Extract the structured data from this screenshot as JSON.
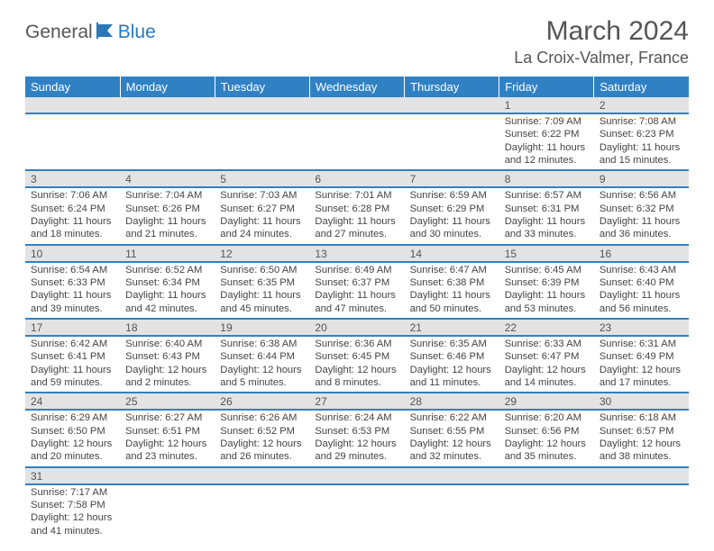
{
  "brand": {
    "part1": "General",
    "part2": "Blue"
  },
  "title": "March 2024",
  "location": "La Croix-Valmer, France",
  "colors": {
    "header_bg": "#3081c4",
    "header_fg": "#ffffff",
    "daynum_bg": "#e3e3e3",
    "row_divider": "#3081c4",
    "text": "#444444"
  },
  "day_labels": [
    "Sunday",
    "Monday",
    "Tuesday",
    "Wednesday",
    "Thursday",
    "Friday",
    "Saturday"
  ],
  "weeks": [
    [
      null,
      null,
      null,
      null,
      null,
      {
        "n": "1",
        "sr": "7:09 AM",
        "ss": "6:22 PM",
        "dl": "11 hours and 12 minutes."
      },
      {
        "n": "2",
        "sr": "7:08 AM",
        "ss": "6:23 PM",
        "dl": "11 hours and 15 minutes."
      }
    ],
    [
      {
        "n": "3",
        "sr": "7:06 AM",
        "ss": "6:24 PM",
        "dl": "11 hours and 18 minutes."
      },
      {
        "n": "4",
        "sr": "7:04 AM",
        "ss": "6:26 PM",
        "dl": "11 hours and 21 minutes."
      },
      {
        "n": "5",
        "sr": "7:03 AM",
        "ss": "6:27 PM",
        "dl": "11 hours and 24 minutes."
      },
      {
        "n": "6",
        "sr": "7:01 AM",
        "ss": "6:28 PM",
        "dl": "11 hours and 27 minutes."
      },
      {
        "n": "7",
        "sr": "6:59 AM",
        "ss": "6:29 PM",
        "dl": "11 hours and 30 minutes."
      },
      {
        "n": "8",
        "sr": "6:57 AM",
        "ss": "6:31 PM",
        "dl": "11 hours and 33 minutes."
      },
      {
        "n": "9",
        "sr": "6:56 AM",
        "ss": "6:32 PM",
        "dl": "11 hours and 36 minutes."
      }
    ],
    [
      {
        "n": "10",
        "sr": "6:54 AM",
        "ss": "6:33 PM",
        "dl": "11 hours and 39 minutes."
      },
      {
        "n": "11",
        "sr": "6:52 AM",
        "ss": "6:34 PM",
        "dl": "11 hours and 42 minutes."
      },
      {
        "n": "12",
        "sr": "6:50 AM",
        "ss": "6:35 PM",
        "dl": "11 hours and 45 minutes."
      },
      {
        "n": "13",
        "sr": "6:49 AM",
        "ss": "6:37 PM",
        "dl": "11 hours and 47 minutes."
      },
      {
        "n": "14",
        "sr": "6:47 AM",
        "ss": "6:38 PM",
        "dl": "11 hours and 50 minutes."
      },
      {
        "n": "15",
        "sr": "6:45 AM",
        "ss": "6:39 PM",
        "dl": "11 hours and 53 minutes."
      },
      {
        "n": "16",
        "sr": "6:43 AM",
        "ss": "6:40 PM",
        "dl": "11 hours and 56 minutes."
      }
    ],
    [
      {
        "n": "17",
        "sr": "6:42 AM",
        "ss": "6:41 PM",
        "dl": "11 hours and 59 minutes."
      },
      {
        "n": "18",
        "sr": "6:40 AM",
        "ss": "6:43 PM",
        "dl": "12 hours and 2 minutes."
      },
      {
        "n": "19",
        "sr": "6:38 AM",
        "ss": "6:44 PM",
        "dl": "12 hours and 5 minutes."
      },
      {
        "n": "20",
        "sr": "6:36 AM",
        "ss": "6:45 PM",
        "dl": "12 hours and 8 minutes."
      },
      {
        "n": "21",
        "sr": "6:35 AM",
        "ss": "6:46 PM",
        "dl": "12 hours and 11 minutes."
      },
      {
        "n": "22",
        "sr": "6:33 AM",
        "ss": "6:47 PM",
        "dl": "12 hours and 14 minutes."
      },
      {
        "n": "23",
        "sr": "6:31 AM",
        "ss": "6:49 PM",
        "dl": "12 hours and 17 minutes."
      }
    ],
    [
      {
        "n": "24",
        "sr": "6:29 AM",
        "ss": "6:50 PM",
        "dl": "12 hours and 20 minutes."
      },
      {
        "n": "25",
        "sr": "6:27 AM",
        "ss": "6:51 PM",
        "dl": "12 hours and 23 minutes."
      },
      {
        "n": "26",
        "sr": "6:26 AM",
        "ss": "6:52 PM",
        "dl": "12 hours and 26 minutes."
      },
      {
        "n": "27",
        "sr": "6:24 AM",
        "ss": "6:53 PM",
        "dl": "12 hours and 29 minutes."
      },
      {
        "n": "28",
        "sr": "6:22 AM",
        "ss": "6:55 PM",
        "dl": "12 hours and 32 minutes."
      },
      {
        "n": "29",
        "sr": "6:20 AM",
        "ss": "6:56 PM",
        "dl": "12 hours and 35 minutes."
      },
      {
        "n": "30",
        "sr": "6:18 AM",
        "ss": "6:57 PM",
        "dl": "12 hours and 38 minutes."
      }
    ],
    [
      {
        "n": "31",
        "sr": "7:17 AM",
        "ss": "7:58 PM",
        "dl": "12 hours and 41 minutes."
      },
      null,
      null,
      null,
      null,
      null,
      null
    ]
  ],
  "labels": {
    "sunrise": "Sunrise: ",
    "sunset": "Sunset: ",
    "daylight": "Daylight: "
  }
}
